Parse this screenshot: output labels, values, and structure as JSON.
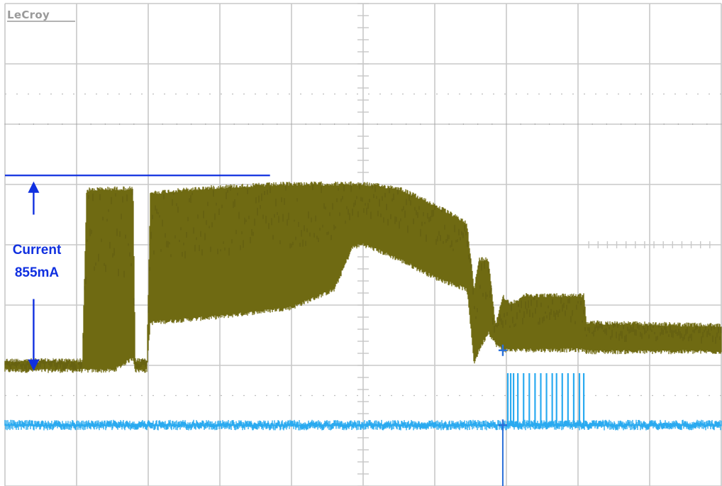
{
  "brand": {
    "logo_text": "LeCroy"
  },
  "annotation": {
    "line1": "Current",
    "line2": "855mA",
    "color": "#1030e0"
  },
  "chart_data": {
    "type": "line",
    "title": "",
    "xlabel": "",
    "ylabel": "",
    "grid": true,
    "grid_divisions": {
      "x": 10,
      "y": 8
    },
    "xlim": [
      0,
      10
    ],
    "ylim": [
      0,
      8
    ],
    "colors": {
      "current": "#6f6a12",
      "digital": "#2aaaf0",
      "grid": "#c8c8c8",
      "marker": "#1030e0"
    },
    "series": [
      {
        "key": "current",
        "envelope": [
          {
            "x": 0.0,
            "top": 2.12,
            "bottom": 1.91
          },
          {
            "x": 1.08,
            "top": 2.12,
            "bottom": 1.91
          },
          {
            "x": 1.14,
            "top": 4.95,
            "bottom": 1.91
          },
          {
            "x": 1.52,
            "top": 4.97,
            "bottom": 1.91
          },
          {
            "x": 1.79,
            "top": 4.97,
            "bottom": 2.12
          },
          {
            "x": 1.82,
            "top": 2.12,
            "bottom": 1.91
          },
          {
            "x": 1.98,
            "top": 2.12,
            "bottom": 1.91
          },
          {
            "x": 2.03,
            "top": 4.9,
            "bottom": 2.7
          },
          {
            "x": 3.0,
            "top": 5.0,
            "bottom": 2.8
          },
          {
            "x": 4.0,
            "top": 5.05,
            "bottom": 2.95
          },
          {
            "x": 4.6,
            "top": 5.05,
            "bottom": 3.25
          },
          {
            "x": 4.85,
            "top": 5.05,
            "bottom": 3.95
          },
          {
            "x": 5.0,
            "top": 5.05,
            "bottom": 4.0
          },
          {
            "x": 5.5,
            "top": 4.98,
            "bottom": 3.75
          },
          {
            "x": 6.0,
            "top": 4.7,
            "bottom": 3.45
          },
          {
            "x": 6.45,
            "top": 4.4,
            "bottom": 3.25
          },
          {
            "x": 6.55,
            "top": 3.3,
            "bottom": 2.03
          },
          {
            "x": 6.62,
            "top": 3.8,
            "bottom": 2.25
          },
          {
            "x": 6.75,
            "top": 3.8,
            "bottom": 2.55
          },
          {
            "x": 6.85,
            "top": 2.7,
            "bottom": 2.35
          },
          {
            "x": 6.95,
            "top": 3.2,
            "bottom": 2.25
          },
          {
            "x": 7.05,
            "top": 3.05,
            "bottom": 2.25
          },
          {
            "x": 7.25,
            "top": 3.2,
            "bottom": 2.25
          },
          {
            "x": 8.08,
            "top": 3.2,
            "bottom": 2.25
          },
          {
            "x": 8.12,
            "top": 2.75,
            "bottom": 2.22
          },
          {
            "x": 10.0,
            "top": 2.7,
            "bottom": 2.22
          }
        ]
      },
      {
        "key": "digital",
        "baseline": 1.01,
        "noise": 0.08,
        "pulses": [
          7.02,
          7.06,
          7.1,
          7.16,
          7.24,
          7.32,
          7.4,
          7.48,
          7.56,
          7.64,
          7.7,
          7.78,
          7.86,
          7.94,
          8.02,
          8.08
        ],
        "pulse_high": 1.87
      }
    ],
    "markers": [
      {
        "key": "cursor",
        "level": 5.15,
        "x_end": 3.7
      },
      {
        "key": "trigger",
        "x": 6.95,
        "levels": [
          2.25,
          1.01
        ]
      }
    ],
    "measurement": {
      "label_lines": [
        "Current",
        "855mA"
      ],
      "top": 5.05,
      "bottom": 1.91
    }
  }
}
